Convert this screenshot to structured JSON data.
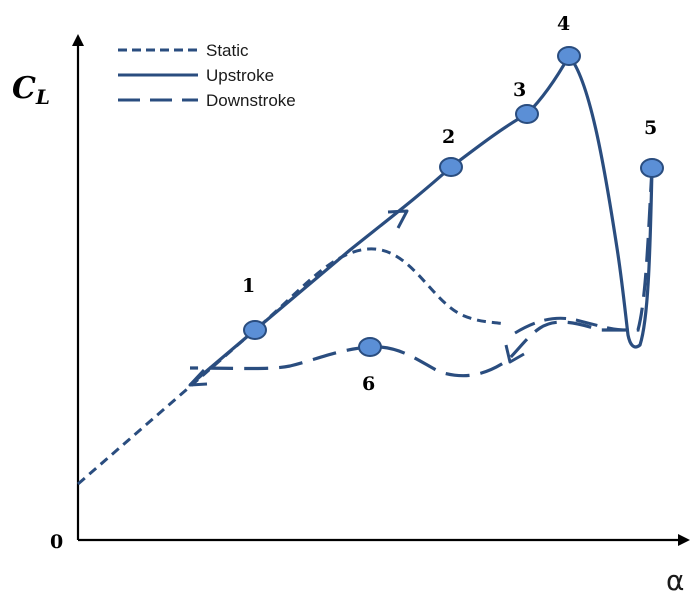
{
  "legend": {
    "items": [
      {
        "label": "Static",
        "style": "short-dash"
      },
      {
        "label": "Upstroke",
        "style": "solid"
      },
      {
        "label": "Downstroke",
        "style": "long-dash"
      }
    ]
  },
  "axes": {
    "y_label_main": "C",
    "y_label_sub": "L",
    "x_label": "α",
    "origin_label": "0"
  },
  "points": [
    {
      "label": "1"
    },
    {
      "label": "2"
    },
    {
      "label": "3"
    },
    {
      "label": "4"
    },
    {
      "label": "5"
    },
    {
      "label": "6"
    }
  ],
  "colors": {
    "curve": "#2a4d7f",
    "marker_fill": "#5b8fd6",
    "axis": "#000000"
  }
}
